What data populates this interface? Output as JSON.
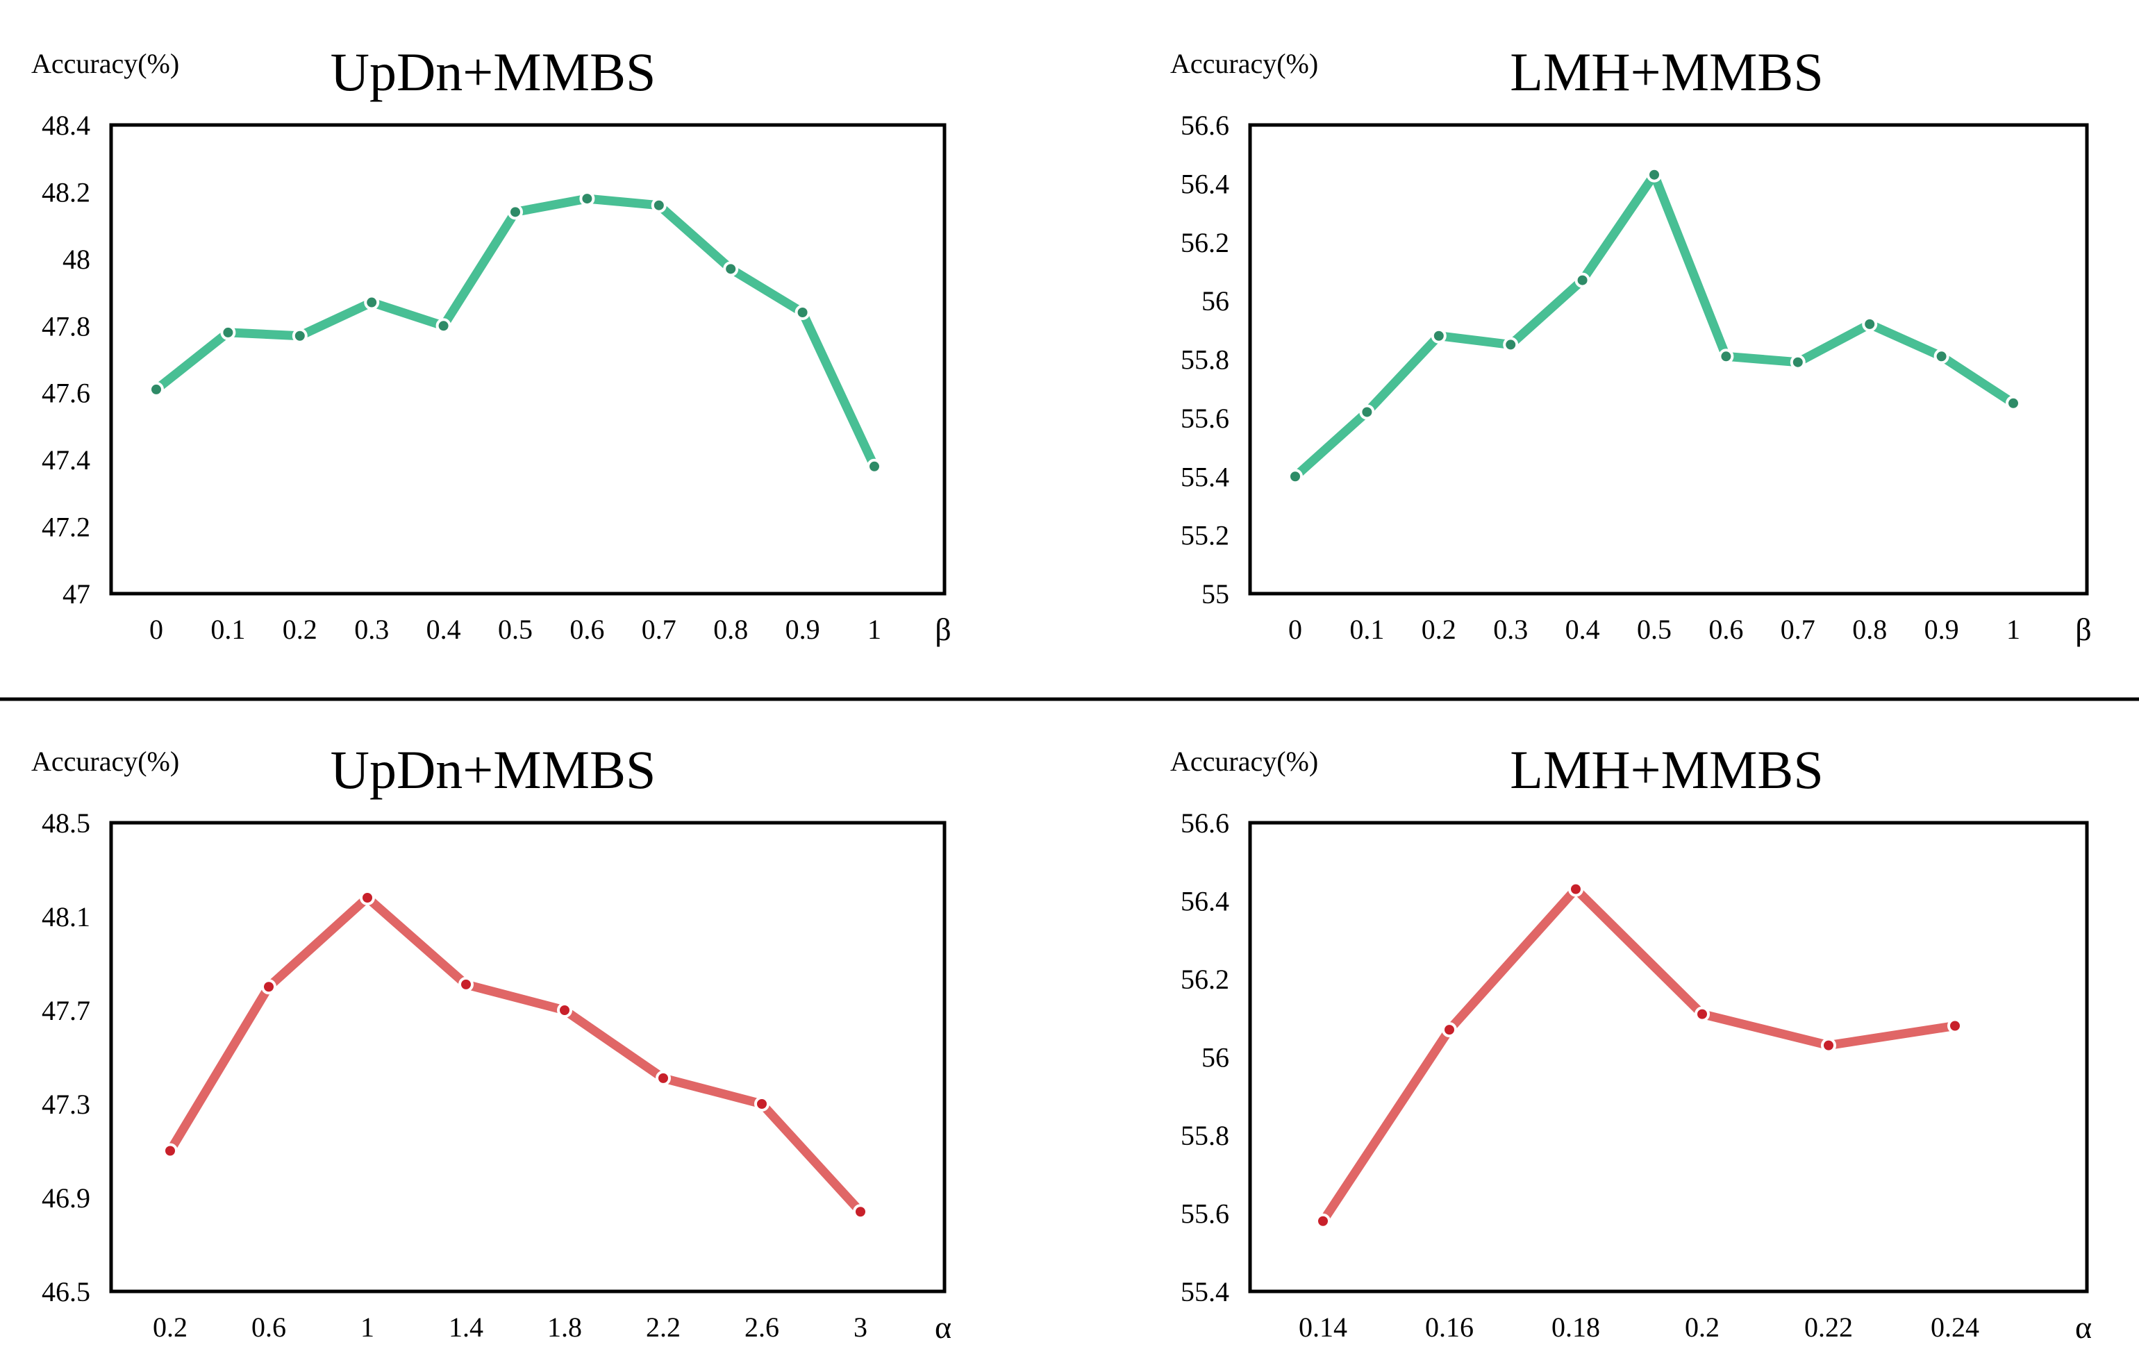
{
  "colors": {
    "green_line": "#48bf94",
    "green_marker": "#2e8b67",
    "red_line": "#e06666",
    "red_marker": "#c8202a"
  },
  "chart_data": [
    {
      "type": "line",
      "title": "UpDn+MMBS",
      "ylabel": "Accuracy(%)",
      "xlabel": "β",
      "categories": [
        "0",
        "0.1",
        "0.2",
        "0.3",
        "0.4",
        "0.5",
        "0.6",
        "0.7",
        "0.8",
        "0.9",
        "1"
      ],
      "series": [
        {
          "values": [
            47.61,
            47.78,
            47.77,
            47.87,
            47.8,
            48.14,
            48.18,
            48.16,
            47.97,
            47.84,
            47.38
          ]
        }
      ],
      "ylim": [
        47,
        48.4
      ],
      "yticks": [
        "47",
        "47.2",
        "47.4",
        "47.6",
        "47.8",
        "48",
        "48.2",
        "48.4"
      ],
      "color": "green"
    },
    {
      "type": "line",
      "title": "LMH+MMBS",
      "ylabel": "Accuracy(%)",
      "xlabel": "β",
      "categories": [
        "0",
        "0.1",
        "0.2",
        "0.3",
        "0.4",
        "0.5",
        "0.6",
        "0.7",
        "0.8",
        "0.9",
        "1"
      ],
      "series": [
        {
          "values": [
            55.4,
            55.62,
            55.88,
            55.85,
            56.07,
            56.43,
            55.81,
            55.79,
            55.92,
            55.81,
            55.65
          ]
        }
      ],
      "ylim": [
        55,
        56.6
      ],
      "yticks": [
        "55",
        "55.2",
        "55.4",
        "55.6",
        "55.8",
        "56",
        "56.2",
        "56.4",
        "56.6"
      ],
      "color": "green"
    },
    {
      "type": "line",
      "title": "UpDn+MMBS",
      "ylabel": "Accuracy(%)",
      "xlabel": "α",
      "categories": [
        "0.2",
        "0.6",
        "1",
        "1.4",
        "1.8",
        "2.2",
        "2.6",
        "3"
      ],
      "series": [
        {
          "values": [
            47.1,
            47.8,
            48.18,
            47.81,
            47.7,
            47.41,
            47.3,
            46.84
          ]
        }
      ],
      "ylim": [
        46.5,
        48.5
      ],
      "yticks": [
        "46.5",
        "46.9",
        "47.3",
        "47.7",
        "48.1",
        "48.5"
      ],
      "color": "red"
    },
    {
      "type": "line",
      "title": "LMH+MMBS",
      "ylabel": "Accuracy(%)",
      "xlabel": "α",
      "categories": [
        "0.14",
        "0.16",
        "0.18",
        "0.2",
        "0.22",
        "0.24"
      ],
      "series": [
        {
          "values": [
            55.58,
            56.07,
            56.43,
            56.11,
            56.03,
            56.08
          ]
        }
      ],
      "ylim": [
        55.4,
        56.6
      ],
      "yticks": [
        "55.4",
        "55.6",
        "55.8",
        "56",
        "56.2",
        "56.4",
        "56.6"
      ],
      "color": "red"
    }
  ]
}
